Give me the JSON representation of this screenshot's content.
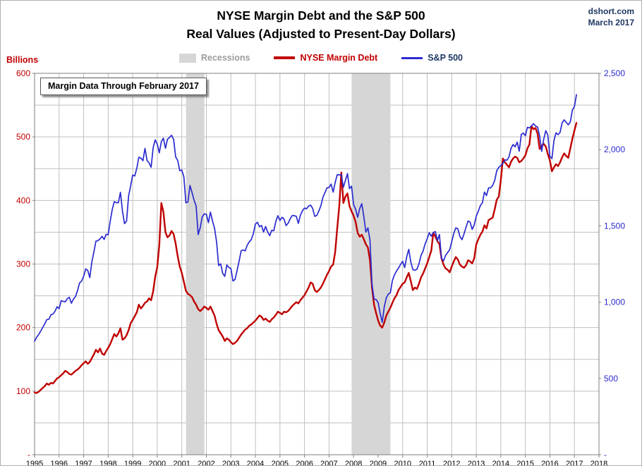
{
  "header": {
    "source": "dshort.com",
    "as_of": "March 2017"
  },
  "chart_data": {
    "type": "line",
    "title": "NYSE Margin Debt and the S&P 500",
    "subtitle": "Real Values (Adjusted to Present-Day Dollars)",
    "annotation": "Margin Data Through February 2017",
    "legend": [
      {
        "label": "Recessions",
        "kind": "band",
        "color": "#d6d6d6",
        "text_color": "#9c9c9c"
      },
      {
        "label": "NYSE Margin Debt",
        "kind": "line",
        "color": "#c00000",
        "text_color": "#c00000"
      },
      {
        "label": "S&P 500",
        "kind": "line",
        "color": "#2b2bd0",
        "text_color": "#1f3864"
      }
    ],
    "x": {
      "start_year": 1995,
      "start_month": 1,
      "end_year": 2017,
      "end_month": 2,
      "axis_min": 1995,
      "axis_max": 2018,
      "tick_years": [
        1995,
        1996,
        1997,
        1998,
        1999,
        2000,
        2001,
        2002,
        2003,
        2004,
        2005,
        2006,
        2007,
        2008,
        2009,
        2010,
        2011,
        2012,
        2013,
        2014,
        2015,
        2016,
        2017,
        2018
      ]
    },
    "left_axis": {
      "title": "Billions",
      "color": "#c00000",
      "min": 0,
      "max": 600,
      "grid_step": 50,
      "tick_step": 100,
      "tick_labels": [
        "-",
        "100",
        "200",
        "300",
        "400",
        "500",
        "600"
      ]
    },
    "right_axis": {
      "color": "#2b2bd0",
      "min": 0,
      "max": 2500,
      "tick_step": 500,
      "tick_labels": [
        "-",
        "500",
        "1,000",
        "1,500",
        "2,000",
        "2,500"
      ]
    },
    "recessions": [
      {
        "start": 2001.17,
        "end": 2001.92
      },
      {
        "start": 2007.92,
        "end": 2009.5
      }
    ],
    "series": [
      {
        "name": "NYSE Margin Debt",
        "axis": "left",
        "color": "#c00000",
        "width": 2.4,
        "freq": "monthly",
        "values": [
          98,
          97,
          99,
          102,
          105,
          108,
          112,
          110,
          113,
          112,
          116,
          120,
          122,
          125,
          128,
          132,
          130,
          127,
          126,
          129,
          132,
          134,
          137,
          141,
          144,
          147,
          143,
          146,
          152,
          158,
          165,
          161,
          167,
          159,
          157,
          163,
          168,
          174,
          182,
          190,
          186,
          191,
          199,
          181,
          183,
          188,
          196,
          207,
          212,
          218,
          224,
          236,
          230,
          234,
          239,
          241,
          246,
          243,
          257,
          280,
          295,
          330,
          396,
          382,
          350,
          342,
          345,
          352,
          347,
          332,
          312,
          296,
          286,
          272,
          258,
          253,
          251,
          248,
          241,
          236,
          229,
          226,
          229,
          233,
          231,
          228,
          233,
          226,
          219,
          206,
          196,
          191,
          186,
          179,
          183,
          181,
          177,
          174,
          176,
          179,
          184,
          189,
          193,
          197,
          199,
          203,
          205,
          208,
          211,
          215,
          219,
          217,
          212,
          214,
          211,
          209,
          213,
          216,
          220,
          225,
          223,
          221,
          225,
          224,
          226,
          230,
          234,
          237,
          240,
          238,
          243,
          247,
          251,
          257,
          263,
          271,
          269,
          259,
          256,
          259,
          263,
          269,
          276,
          283,
          289,
          296,
          299,
          319,
          356,
          391,
          444,
          396,
          406,
          411,
          391,
          383,
          376,
          366,
          349,
          343,
          346,
          339,
          331,
          326,
          306,
          263,
          236,
          223,
          211,
          203,
          200,
          208,
          219,
          225,
          231,
          239,
          246,
          251,
          259,
          264,
          269,
          271,
          279,
          286,
          273,
          259,
          263,
          261,
          269,
          279,
          285,
          293,
          301,
          311,
          321,
          349,
          343,
          336,
          331,
          309,
          299,
          293,
          291,
          287,
          296,
          304,
          311,
          307,
          299,
          296,
          294,
          298,
          306,
          304,
          301,
          309,
          331,
          339,
          346,
          351,
          361,
          356,
          369,
          371,
          373,
          386,
          401,
          406,
          432,
          466,
          460,
          456,
          452,
          461,
          466,
          469,
          467,
          460,
          462,
          466,
          471,
          482,
          488,
          517,
          512,
          514,
          505,
          481,
          486,
          489,
          485,
          473,
          463,
          446,
          452,
          457,
          454,
          460,
          468,
          474,
          470,
          467,
          482,
          497,
          510,
          522
        ]
      },
      {
        "name": "S&P 500",
        "axis": "right",
        "color": "#2b2bd0",
        "width": 1.7,
        "freq": "monthly",
        "values": [
          744,
          770,
          788,
          811,
          834,
          859,
          886,
          888,
          917,
          922,
          941,
          970,
          958,
          1010,
          1005,
          1003,
          1023,
          1032,
          993,
          1020,
          1037,
          1076,
          1126,
          1138,
          1170,
          1218,
          1208,
          1161,
          1265,
          1329,
          1400,
          1403,
          1415,
          1432,
          1411,
          1445,
          1442,
          1530,
          1607,
          1659,
          1652,
          1652,
          1720,
          1597,
          1515,
          1532,
          1697,
          1763,
          1833,
          1827,
          1877,
          1950,
          1944,
          1927,
          2008,
          1929,
          1913,
          1884,
          2013,
          2064,
          2036,
          1979,
          2052,
          2075,
          2009,
          2068,
          2080,
          2094,
          2066,
          1952,
          1929,
          1862,
          1866,
          1822,
          1651,
          1657,
          1765,
          1718,
          1668,
          1630,
          1443,
          1488,
          1560,
          1578,
          1576,
          1521,
          1590,
          1532,
          1485,
          1394,
          1240,
          1251,
          1188,
          1169,
          1244,
          1227,
          1221,
          1139,
          1149,
          1207,
          1268,
          1337,
          1342,
          1336,
          1373,
          1396,
          1410,
          1449,
          1511,
          1524,
          1494,
          1503,
          1460,
          1496,
          1460,
          1436,
          1471,
          1468,
          1530,
          1567,
          1535,
          1556,
          1545,
          1502,
          1517,
          1546,
          1568,
          1567,
          1563,
          1516,
          1570,
          1599,
          1617,
          1612,
          1630,
          1636,
          1614,
          1563,
          1568,
          1597,
          1631,
          1687,
          1718,
          1749,
          1752,
          1774,
          1721,
          1784,
          1836,
          1834,
          1836,
          1753,
          1798,
          1843,
          1744,
          1760,
          1641,
          1608,
          1556,
          1614,
          1645,
          1562,
          1459,
          1487,
          1407,
          1118,
          1021,
          1017,
          997,
          925,
          868,
          970,
          1029,
          1053,
          1061,
          1143,
          1179,
          1204,
          1224,
          1247,
          1268,
          1227,
          1297,
          1346,
          1263,
          1214,
          1209,
          1216,
          1253,
          1306,
          1335,
          1382,
          1415,
          1455,
          1432,
          1458,
          1462,
          1404,
          1443,
          1287,
          1271,
          1307,
          1326,
          1344,
          1397,
          1451,
          1487,
          1481,
          1430,
          1410,
          1447,
          1492,
          1532,
          1524,
          1477,
          1507,
          1564,
          1596,
          1633,
          1652,
          1722,
          1699,
          1749,
          1749,
          1765,
          1797,
          1861,
          1884,
          1895,
          1911,
          1933,
          1930,
          1952,
          2009,
          2033,
          2019,
          2049,
          1990,
          2100,
          2108,
          2091,
          2146,
          2142,
          2155,
          2170,
          2155,
          2148,
          2089,
          1989,
          2069,
          2124,
          2095,
          1956,
          1941,
          2059,
          2110,
          2098,
          2113,
          2176,
          2195,
          2179,
          2162,
          2181,
          2259,
          2282,
          2360
        ]
      }
    ]
  }
}
